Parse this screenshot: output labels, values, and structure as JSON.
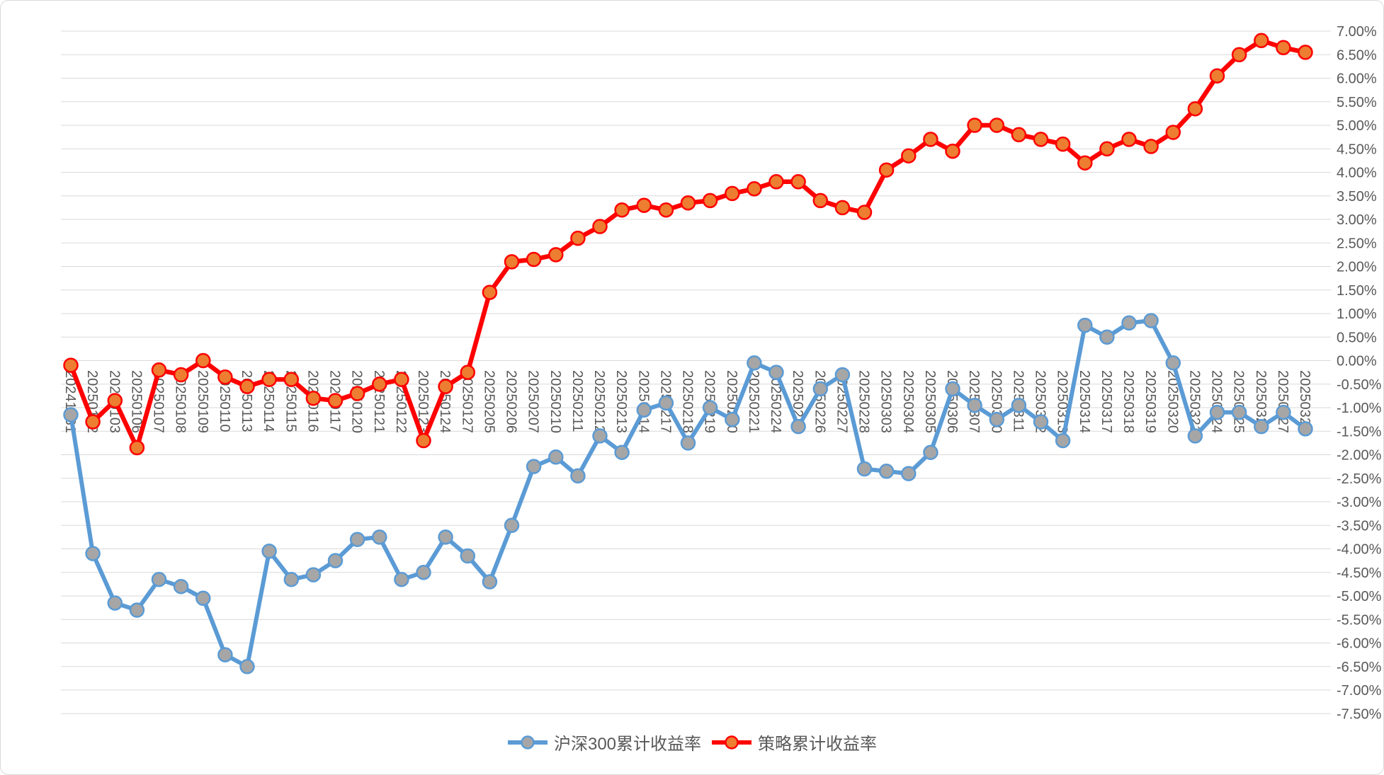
{
  "chart": {
    "background": "#ffffff",
    "border_color": "#d9d9d9",
    "gridline_color": "#d9d9d9",
    "axis_label_color": "#595959"
  },
  "chart_data": {
    "type": "line",
    "title": "",
    "xlabel": "",
    "ylabel": "",
    "grid": true,
    "legend_position": "bottom",
    "ylim": [
      -7.5,
      7.0
    ],
    "ytick_step": 0.5,
    "ytick_labels": [
      "7.00%",
      "6.50%",
      "6.00%",
      "5.50%",
      "5.00%",
      "4.50%",
      "4.00%",
      "3.50%",
      "3.00%",
      "2.50%",
      "2.00%",
      "1.50%",
      "1.00%",
      "0.50%",
      "0.00%",
      "-0.50%",
      "-1.00%",
      "-1.50%",
      "-2.00%",
      "-2.50%",
      "-3.00%",
      "-3.50%",
      "-4.00%",
      "-4.50%",
      "-5.00%",
      "-5.50%",
      "-6.00%",
      "-6.50%",
      "-7.00%",
      "-7.50%"
    ],
    "categories": [
      "20241231",
      "20250102",
      "20250103",
      "20250106",
      "20250107",
      "20250108",
      "20250109",
      "20250110",
      "20250113",
      "20250114",
      "20250115",
      "20250116",
      "20250117",
      "20250120",
      "20250121",
      "20250122",
      "20250123",
      "20250124",
      "20250127",
      "20250205",
      "20250206",
      "20250207",
      "20250210",
      "20250211",
      "20250212",
      "20250213",
      "20250214",
      "20250217",
      "20250218",
      "20250219",
      "20250220",
      "20250221",
      "20250224",
      "20250225",
      "20250226",
      "20250227",
      "20250228",
      "20250303",
      "20250304",
      "20250305",
      "20250306",
      "20250307",
      "20250310",
      "20250311",
      "20250312",
      "20250313",
      "20250314",
      "20250317",
      "20250318",
      "20250319",
      "20250320",
      "20250321",
      "20250324",
      "20250325",
      "20250326",
      "20250327",
      "20250328"
    ],
    "series": [
      {
        "name": "沪深300累计收益率",
        "line_color": "#5b9bd5",
        "marker_fill": "#a6a6a6",
        "marker_stroke": "#5b9bd5",
        "values": [
          -1.15,
          -4.1,
          -5.15,
          -5.3,
          -4.65,
          -4.8,
          -5.05,
          -6.25,
          -6.5,
          -4.05,
          -4.65,
          -4.55,
          -4.25,
          -3.8,
          -3.75,
          -4.65,
          -4.5,
          -3.75,
          -4.15,
          -4.7,
          -3.5,
          -2.25,
          -2.05,
          -2.45,
          -1.6,
          -1.95,
          -1.05,
          -0.9,
          -1.75,
          -1.0,
          -1.25,
          -0.05,
          -0.25,
          -1.4,
          -0.6,
          -0.3,
          -2.3,
          -2.35,
          -2.4,
          -1.95,
          -0.6,
          -0.95,
          -1.25,
          -0.95,
          -1.3,
          -1.7,
          0.75,
          0.5,
          0.8,
          0.85,
          -0.05,
          -1.6,
          -1.1,
          -1.1,
          -1.4,
          -1.1,
          -1.45
        ]
      },
      {
        "name": "策略累计收益率",
        "line_color": "#ff0000",
        "marker_fill": "#ed7d31",
        "marker_stroke": "#ff0000",
        "values": [
          -0.1,
          -1.3,
          -0.85,
          -1.85,
          -0.2,
          -0.3,
          0.0,
          -0.35,
          -0.55,
          -0.4,
          -0.4,
          -0.8,
          -0.85,
          -0.7,
          -0.5,
          -0.4,
          -1.7,
          -0.55,
          -0.25,
          1.45,
          2.1,
          2.15,
          2.25,
          2.6,
          2.85,
          3.2,
          3.3,
          3.2,
          3.35,
          3.4,
          3.55,
          3.65,
          3.8,
          3.8,
          3.4,
          3.25,
          3.15,
          4.05,
          4.35,
          4.7,
          4.45,
          5.0,
          5.0,
          4.8,
          4.7,
          4.6,
          4.2,
          4.5,
          4.7,
          4.55,
          4.85,
          5.35,
          6.05,
          6.5,
          6.8,
          6.65,
          6.55
        ]
      }
    ]
  }
}
